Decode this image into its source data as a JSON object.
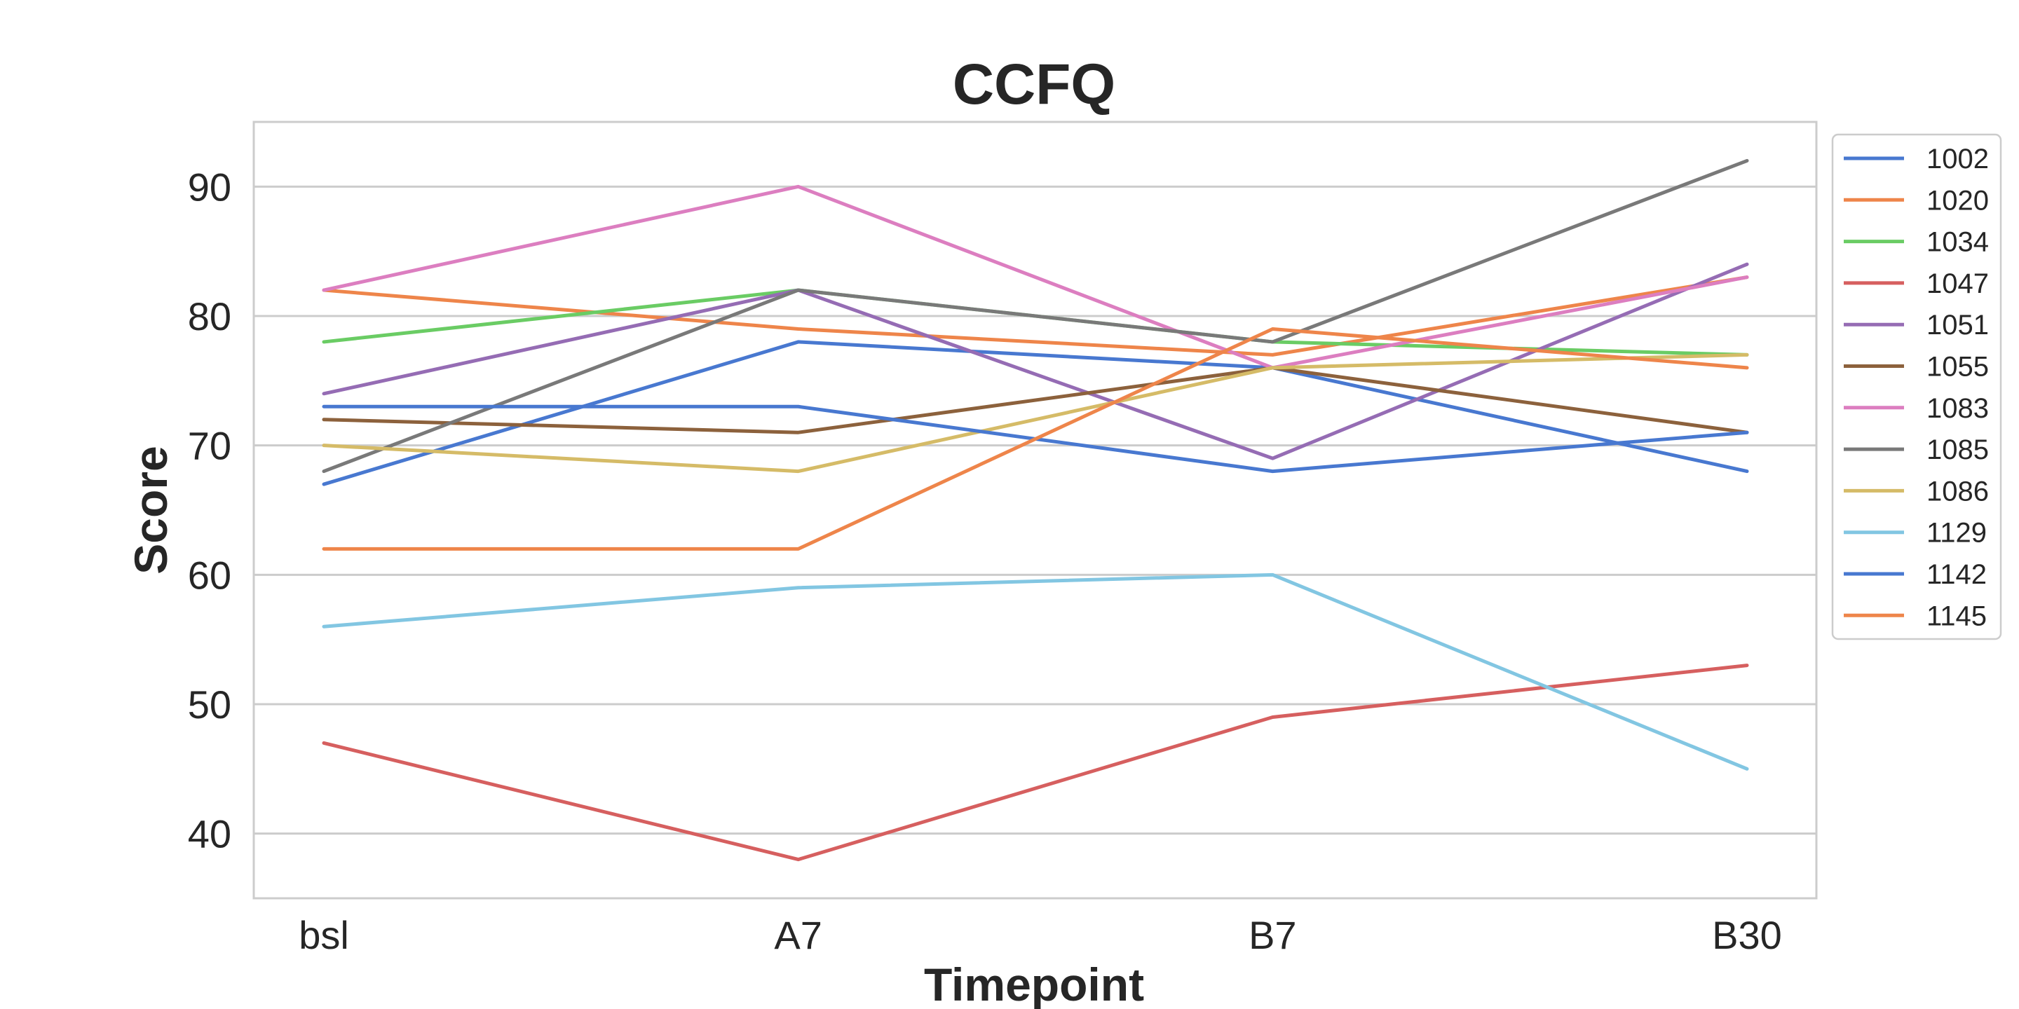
{
  "chart_data": {
    "type": "line",
    "title": "CCFQ",
    "xlabel": "Timepoint",
    "ylabel": "Score",
    "categories": [
      "bsl",
      "A7",
      "B7",
      "B30"
    ],
    "ylim": [
      35,
      95
    ],
    "yticks": [
      40,
      50,
      60,
      70,
      80,
      90
    ],
    "grid": "horizontal",
    "legend_position": "right-outside-top",
    "series": [
      {
        "name": "1002",
        "color": "#4878d0",
        "values": [
          67,
          78,
          76,
          68
        ]
      },
      {
        "name": "1020",
        "color": "#ee854a",
        "values": [
          82,
          79,
          77,
          83
        ]
      },
      {
        "name": "1034",
        "color": "#6acc64",
        "values": [
          78,
          82,
          78,
          77
        ]
      },
      {
        "name": "1047",
        "color": "#d65f5f",
        "values": [
          47,
          38,
          49,
          53
        ]
      },
      {
        "name": "1051",
        "color": "#956cb4",
        "values": [
          74,
          82,
          69,
          84
        ]
      },
      {
        "name": "1055",
        "color": "#8c613c",
        "values": [
          72,
          71,
          76,
          71
        ]
      },
      {
        "name": "1083",
        "color": "#dc7ec0",
        "values": [
          82,
          90,
          76,
          83
        ]
      },
      {
        "name": "1085",
        "color": "#797979",
        "values": [
          68,
          82,
          78,
          92
        ]
      },
      {
        "name": "1086",
        "color": "#d5bb67",
        "values": [
          70,
          68,
          76,
          77
        ]
      },
      {
        "name": "1129",
        "color": "#82c6e2",
        "values": [
          56,
          59,
          60,
          45
        ]
      },
      {
        "name": "1142",
        "color": "#4878d0",
        "values": [
          73,
          73,
          68,
          71
        ]
      },
      {
        "name": "1145",
        "color": "#ee854a",
        "values": [
          62,
          62,
          79,
          76
        ]
      }
    ]
  }
}
